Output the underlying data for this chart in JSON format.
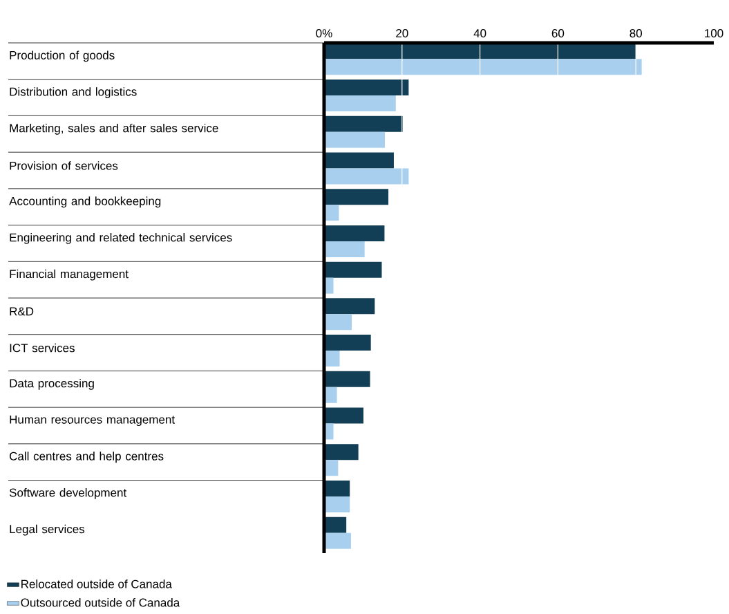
{
  "chart_data": {
    "type": "bar",
    "orientation": "horizontal",
    "categories": [
      "Production of goods",
      "Distribution and logistics",
      "Marketing, sales and after sales service",
      "Provision of services",
      "Accounting and bookkeeping",
      "Engineering and related technical services",
      "Financial management",
      "R&D",
      "ICT services",
      "Data processing",
      "Human resources management",
      "Call centres and help centres",
      "Software development",
      "Legal services"
    ],
    "series": [
      {
        "name": "Relocated outside of Canada",
        "color": "#123f55",
        "values": [
          80,
          21.7,
          20.2,
          17.9,
          16.5,
          15.5,
          14.8,
          13.0,
          12.0,
          11.8,
          10.1,
          8.8,
          6.6,
          5.7
        ]
      },
      {
        "name": "Outsourced outside of Canada",
        "color": "#a8d0ee",
        "values": [
          81.5,
          18.4,
          15.6,
          21.7,
          3.8,
          10.4,
          2.4,
          7.1,
          4.0,
          3.3,
          2.4,
          3.6,
          6.6,
          6.9
        ]
      }
    ],
    "xlim": [
      0,
      100
    ],
    "xticks": [
      {
        "value": 0,
        "label": "0%"
      },
      20,
      40,
      60,
      80,
      100
    ],
    "grid": "x",
    "legend": "bottom left"
  }
}
